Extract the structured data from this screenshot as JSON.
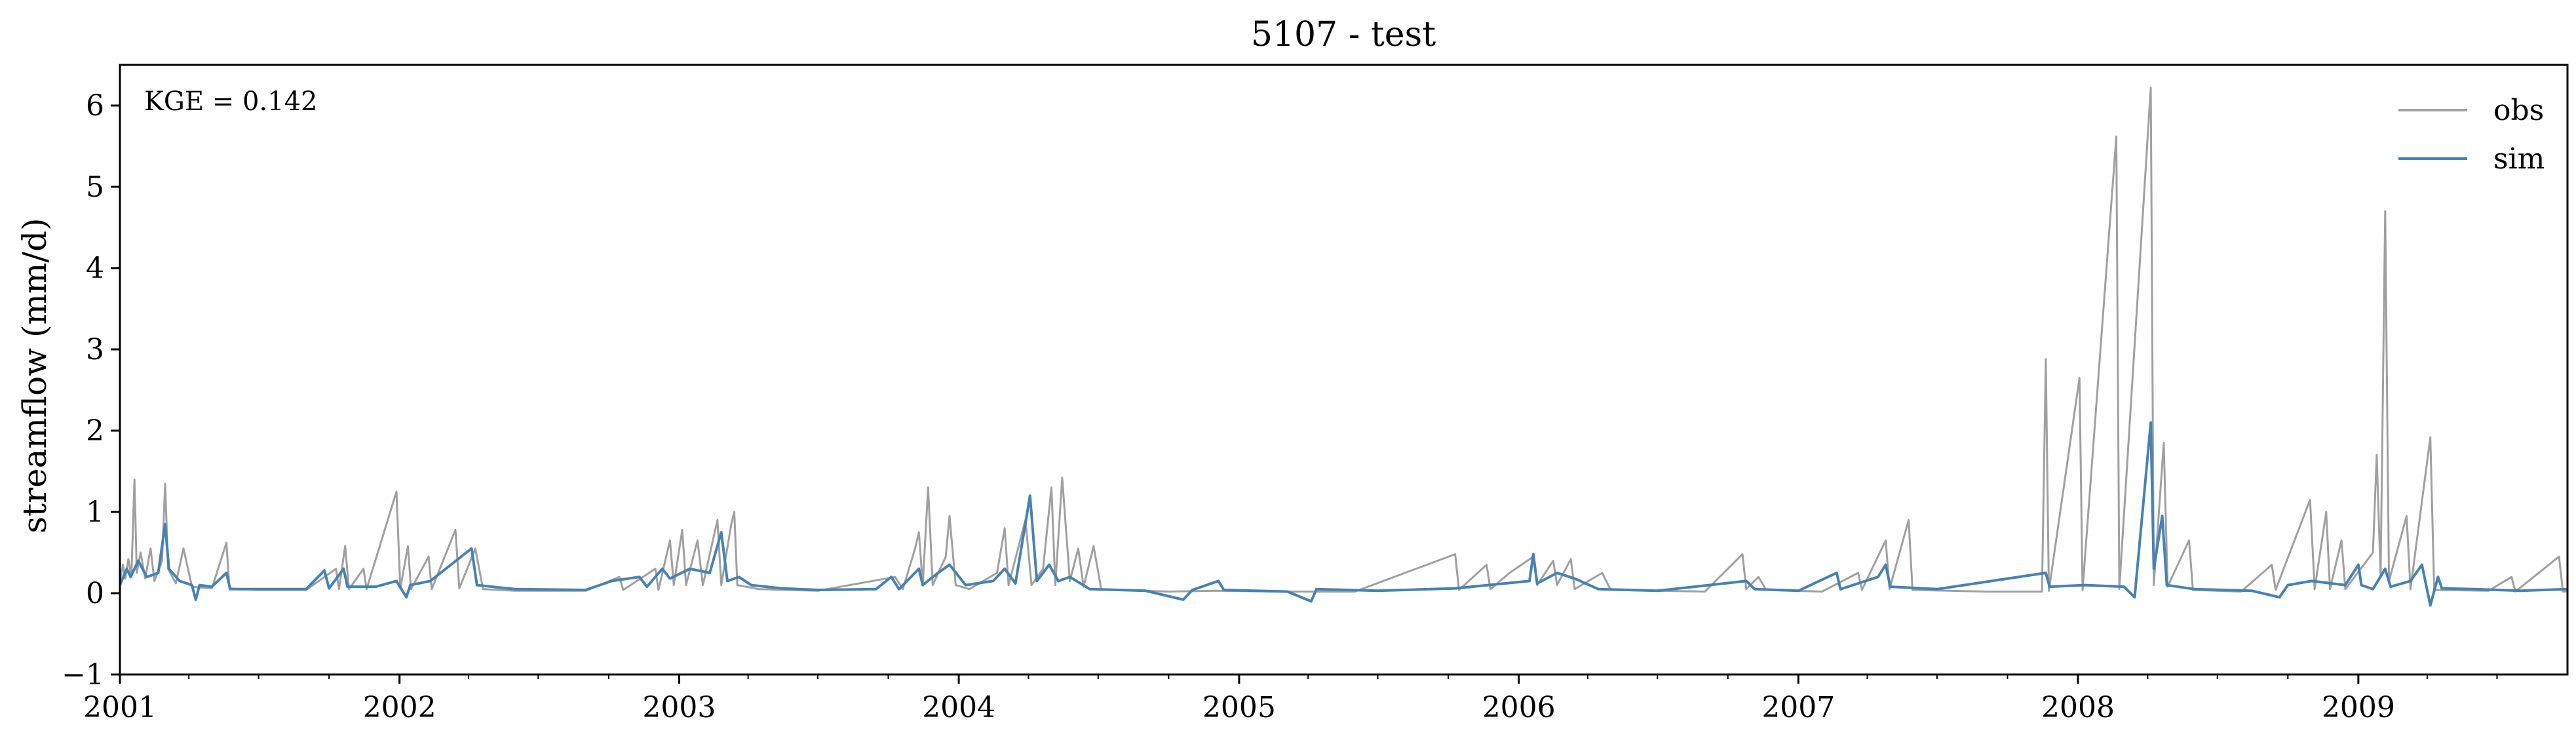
{
  "chart_data": {
    "type": "line",
    "title": "5107 - test",
    "xlabel": "",
    "ylabel": "streamflow (mm/d)",
    "annotation": "KGE = 0.142",
    "xlim": [
      "2001-01-01",
      "2009-10-01"
    ],
    "ylim": [
      -1,
      6.5
    ],
    "yticks": [
      -1,
      0,
      1,
      2,
      3,
      4,
      5,
      6
    ],
    "ytick_labels": [
      "−1",
      "0",
      "1",
      "2",
      "3",
      "4",
      "5",
      "6"
    ],
    "xticks": [
      "2001-01-01",
      "2002-01-01",
      "2003-01-01",
      "2004-01-01",
      "2005-01-01",
      "2006-01-01",
      "2007-01-01",
      "2008-01-01",
      "2009-01-01"
    ],
    "xtick_labels": [
      "2001",
      "2002",
      "2003",
      "2004",
      "2005",
      "2006",
      "2007",
      "2008",
      "2009"
    ],
    "grid": false,
    "legend_position": "top-right",
    "series": [
      {
        "name": "obs",
        "color": "#a0a0a0",
        "points": [
          [
            "2001-01-01",
            0.15
          ],
          [
            "2001-01-05",
            0.35
          ],
          [
            "2001-01-08",
            0.18
          ],
          [
            "2001-01-12",
            0.42
          ],
          [
            "2001-01-16",
            0.2
          ],
          [
            "2001-01-20",
            1.4
          ],
          [
            "2001-01-23",
            0.25
          ],
          [
            "2001-01-28",
            0.5
          ],
          [
            "2001-02-03",
            0.18
          ],
          [
            "2001-02-10",
            0.55
          ],
          [
            "2001-02-15",
            0.15
          ],
          [
            "2001-02-25",
            0.4
          ],
          [
            "2001-03-01",
            1.35
          ],
          [
            "2001-03-05",
            0.3
          ],
          [
            "2001-03-15",
            0.12
          ],
          [
            "2001-03-25",
            0.55
          ],
          [
            "2001-04-05",
            0.08
          ],
          [
            "2001-05-01",
            0.06
          ],
          [
            "2001-05-20",
            0.62
          ],
          [
            "2001-05-24",
            0.06
          ],
          [
            "2001-07-01",
            0.04
          ],
          [
            "2001-09-01",
            0.04
          ],
          [
            "2001-10-10",
            0.3
          ],
          [
            "2001-10-14",
            0.05
          ],
          [
            "2001-10-22",
            0.58
          ],
          [
            "2001-10-27",
            0.05
          ],
          [
            "2001-11-15",
            0.3
          ],
          [
            "2001-11-19",
            0.05
          ],
          [
            "2001-12-28",
            1.25
          ],
          [
            "2002-01-02",
            0.06
          ],
          [
            "2002-01-12",
            0.58
          ],
          [
            "2002-01-16",
            0.05
          ],
          [
            "2002-02-08",
            0.45
          ],
          [
            "2002-02-12",
            0.05
          ],
          [
            "2002-03-15",
            0.78
          ],
          [
            "2002-03-20",
            0.06
          ],
          [
            "2002-04-10",
            0.55
          ],
          [
            "2002-04-20",
            0.05
          ],
          [
            "2002-06-01",
            0.03
          ],
          [
            "2002-09-01",
            0.03
          ],
          [
            "2002-10-15",
            0.2
          ],
          [
            "2002-10-20",
            0.04
          ],
          [
            "2002-12-01",
            0.3
          ],
          [
            "2002-12-05",
            0.04
          ],
          [
            "2002-12-20",
            0.65
          ],
          [
            "2002-12-25",
            0.1
          ],
          [
            "2003-01-05",
            0.78
          ],
          [
            "2003-01-10",
            0.1
          ],
          [
            "2003-01-25",
            0.65
          ],
          [
            "2003-02-01",
            0.1
          ],
          [
            "2003-02-20",
            0.9
          ],
          [
            "2003-02-25",
            0.1
          ],
          [
            "2003-03-10",
            0.85
          ],
          [
            "2003-03-14",
            1.0
          ],
          [
            "2003-03-18",
            0.1
          ],
          [
            "2003-04-15",
            0.05
          ],
          [
            "2003-07-01",
            0.03
          ],
          [
            "2003-10-10",
            0.2
          ],
          [
            "2003-10-20",
            0.05
          ],
          [
            "2003-11-05",
            0.55
          ],
          [
            "2003-11-10",
            0.75
          ],
          [
            "2003-11-15",
            0.1
          ],
          [
            "2003-11-22",
            1.3
          ],
          [
            "2003-11-28",
            0.1
          ],
          [
            "2003-12-15",
            0.45
          ],
          [
            "2003-12-20",
            0.95
          ],
          [
            "2003-12-28",
            0.1
          ],
          [
            "2004-01-15",
            0.05
          ],
          [
            "2004-02-20",
            0.25
          ],
          [
            "2004-03-01",
            0.8
          ],
          [
            "2004-03-06",
            0.1
          ],
          [
            "2004-03-28",
            0.9
          ],
          [
            "2004-04-05",
            0.1
          ],
          [
            "2004-04-20",
            0.3
          ],
          [
            "2004-05-01",
            1.3
          ],
          [
            "2004-05-06",
            0.1
          ],
          [
            "2004-05-15",
            1.42
          ],
          [
            "2004-05-25",
            0.15
          ],
          [
            "2004-06-05",
            0.55
          ],
          [
            "2004-06-12",
            0.08
          ],
          [
            "2004-06-25",
            0.58
          ],
          [
            "2004-07-05",
            0.05
          ],
          [
            "2004-10-01",
            0.02
          ],
          [
            "2004-12-01",
            0.03
          ],
          [
            "2005-03-01",
            0.02
          ],
          [
            "2005-06-01",
            0.02
          ],
          [
            "2005-10-10",
            0.48
          ],
          [
            "2005-10-15",
            0.04
          ],
          [
            "2005-11-20",
            0.35
          ],
          [
            "2005-11-25",
            0.05
          ],
          [
            "2005-12-20",
            0.25
          ],
          [
            "2006-01-20",
            0.45
          ],
          [
            "2006-01-25",
            0.1
          ],
          [
            "2006-02-15",
            0.4
          ],
          [
            "2006-02-20",
            0.1
          ],
          [
            "2006-03-10",
            0.42
          ],
          [
            "2006-03-15",
            0.05
          ],
          [
            "2006-04-20",
            0.25
          ],
          [
            "2006-05-01",
            0.04
          ],
          [
            "2006-09-01",
            0.02
          ],
          [
            "2006-10-20",
            0.48
          ],
          [
            "2006-10-25",
            0.05
          ],
          [
            "2006-11-10",
            0.2
          ],
          [
            "2006-11-20",
            0.04
          ],
          [
            "2007-02-01",
            0.02
          ],
          [
            "2007-03-20",
            0.25
          ],
          [
            "2007-03-25",
            0.04
          ],
          [
            "2007-04-25",
            0.65
          ],
          [
            "2007-04-30",
            0.05
          ],
          [
            "2007-05-25",
            0.9
          ],
          [
            "2007-05-30",
            0.04
          ],
          [
            "2007-09-01",
            0.02
          ],
          [
            "2007-11-15",
            0.02
          ],
          [
            "2007-11-20",
            2.88
          ],
          [
            "2007-11-24",
            0.03
          ],
          [
            "2008-01-03",
            2.65
          ],
          [
            "2008-01-07",
            0.04
          ],
          [
            "2008-02-20",
            5.62
          ],
          [
            "2008-02-24",
            0.05
          ],
          [
            "2008-04-05",
            6.22
          ],
          [
            "2008-04-09",
            0.1
          ],
          [
            "2008-04-22",
            1.85
          ],
          [
            "2008-04-27",
            0.08
          ],
          [
            "2008-05-25",
            0.65
          ],
          [
            "2008-05-30",
            0.04
          ],
          [
            "2008-08-01",
            0.02
          ],
          [
            "2008-09-10",
            0.35
          ],
          [
            "2008-09-15",
            0.04
          ],
          [
            "2008-10-30",
            1.15
          ],
          [
            "2008-11-05",
            0.05
          ],
          [
            "2008-11-20",
            1.0
          ],
          [
            "2008-11-25",
            0.05
          ],
          [
            "2008-12-10",
            0.65
          ],
          [
            "2008-12-15",
            0.05
          ],
          [
            "2009-01-20",
            0.5
          ],
          [
            "2009-01-25",
            1.7
          ],
          [
            "2009-01-30",
            0.2
          ],
          [
            "2009-02-05",
            4.7
          ],
          [
            "2009-02-10",
            0.15
          ],
          [
            "2009-03-05",
            0.95
          ],
          [
            "2009-03-10",
            0.05
          ],
          [
            "2009-04-05",
            1.92
          ],
          [
            "2009-04-10",
            0.04
          ],
          [
            "2009-06-20",
            0.03
          ],
          [
            "2009-07-20",
            0.2
          ],
          [
            "2009-07-25",
            0.02
          ],
          [
            "2009-09-20",
            0.45
          ],
          [
            "2009-09-25",
            0.02
          ],
          [
            "2009-10-01",
            0.02
          ]
        ]
      },
      {
        "name": "sim",
        "color": "#4682b4",
        "points": [
          [
            "2001-01-01",
            0.1
          ],
          [
            "2001-01-10",
            0.3
          ],
          [
            "2001-01-15",
            0.2
          ],
          [
            "2001-01-25",
            0.4
          ],
          [
            "2001-02-05",
            0.2
          ],
          [
            "2001-02-20",
            0.25
          ],
          [
            "2001-03-01",
            0.85
          ],
          [
            "2001-03-06",
            0.3
          ],
          [
            "2001-03-20",
            0.15
          ],
          [
            "2001-04-05",
            0.1
          ],
          [
            "2001-04-10",
            -0.08
          ],
          [
            "2001-04-15",
            0.1
          ],
          [
            "2001-05-01",
            0.08
          ],
          [
            "2001-05-20",
            0.25
          ],
          [
            "2001-05-25",
            0.05
          ],
          [
            "2001-07-01",
            0.05
          ],
          [
            "2001-09-01",
            0.05
          ],
          [
            "2001-09-25",
            0.28
          ],
          [
            "2001-10-01",
            0.06
          ],
          [
            "2001-10-20",
            0.3
          ],
          [
            "2001-10-25",
            0.08
          ],
          [
            "2001-12-01",
            0.08
          ],
          [
            "2001-12-28",
            0.15
          ],
          [
            "2002-01-10",
            -0.05
          ],
          [
            "2002-01-15",
            0.1
          ],
          [
            "2002-02-10",
            0.15
          ],
          [
            "2002-04-05",
            0.55
          ],
          [
            "2002-04-12",
            0.1
          ],
          [
            "2002-06-01",
            0.05
          ],
          [
            "2002-09-01",
            0.04
          ],
          [
            "2002-10-05",
            0.15
          ],
          [
            "2002-11-10",
            0.2
          ],
          [
            "2002-11-20",
            0.08
          ],
          [
            "2002-12-10",
            0.3
          ],
          [
            "2002-12-20",
            0.18
          ],
          [
            "2003-01-15",
            0.3
          ],
          [
            "2003-02-10",
            0.25
          ],
          [
            "2003-02-25",
            0.75
          ],
          [
            "2003-03-05",
            0.15
          ],
          [
            "2003-03-20",
            0.2
          ],
          [
            "2003-04-05",
            0.1
          ],
          [
            "2003-05-15",
            0.06
          ],
          [
            "2003-07-01",
            0.04
          ],
          [
            "2003-09-15",
            0.05
          ],
          [
            "2003-10-05",
            0.2
          ],
          [
            "2003-10-15",
            0.05
          ],
          [
            "2003-11-10",
            0.3
          ],
          [
            "2003-11-15",
            0.1
          ],
          [
            "2003-12-05",
            0.25
          ],
          [
            "2003-12-20",
            0.35
          ],
          [
            "2004-01-10",
            0.1
          ],
          [
            "2004-02-15",
            0.15
          ],
          [
            "2004-03-01",
            0.3
          ],
          [
            "2004-03-15",
            0.12
          ],
          [
            "2004-04-03",
            1.2
          ],
          [
            "2004-04-12",
            0.15
          ],
          [
            "2004-04-28",
            0.35
          ],
          [
            "2004-05-10",
            0.15
          ],
          [
            "2004-05-25",
            0.2
          ],
          [
            "2004-06-20",
            0.05
          ],
          [
            "2004-09-01",
            0.03
          ],
          [
            "2004-10-20",
            -0.08
          ],
          [
            "2004-11-01",
            0.04
          ],
          [
            "2004-12-05",
            0.15
          ],
          [
            "2004-12-12",
            0.04
          ],
          [
            "2005-03-05",
            0.02
          ],
          [
            "2005-04-05",
            -0.1
          ],
          [
            "2005-04-12",
            0.05
          ],
          [
            "2005-07-01",
            0.03
          ],
          [
            "2005-10-10",
            0.06
          ],
          [
            "2006-01-15",
            0.15
          ],
          [
            "2006-01-20",
            0.48
          ],
          [
            "2006-01-25",
            0.12
          ],
          [
            "2006-02-20",
            0.25
          ],
          [
            "2006-03-15",
            0.18
          ],
          [
            "2006-04-15",
            0.05
          ],
          [
            "2006-07-01",
            0.03
          ],
          [
            "2006-10-25",
            0.15
          ],
          [
            "2006-11-05",
            0.05
          ],
          [
            "2007-01-01",
            0.03
          ],
          [
            "2007-02-20",
            0.25
          ],
          [
            "2007-02-25",
            0.05
          ],
          [
            "2007-04-15",
            0.2
          ],
          [
            "2007-04-25",
            0.35
          ],
          [
            "2007-05-01",
            0.08
          ],
          [
            "2007-07-01",
            0.05
          ],
          [
            "2007-11-20",
            0.25
          ],
          [
            "2007-11-25",
            0.08
          ],
          [
            "2008-01-10",
            0.1
          ],
          [
            "2008-03-01",
            0.08
          ],
          [
            "2008-03-15",
            -0.05
          ],
          [
            "2008-04-05",
            2.1
          ],
          [
            "2008-04-09",
            0.3
          ],
          [
            "2008-04-20",
            0.95
          ],
          [
            "2008-04-26",
            0.1
          ],
          [
            "2008-06-01",
            0.05
          ],
          [
            "2008-08-15",
            0.03
          ],
          [
            "2008-09-20",
            -0.05
          ],
          [
            "2008-10-01",
            0.1
          ],
          [
            "2008-11-01",
            0.15
          ],
          [
            "2008-12-15",
            0.1
          ],
          [
            "2009-01-01",
            0.35
          ],
          [
            "2009-01-05",
            0.1
          ],
          [
            "2009-01-20",
            0.05
          ],
          [
            "2009-02-05",
            0.3
          ],
          [
            "2009-02-12",
            0.08
          ],
          [
            "2009-03-10",
            0.15
          ],
          [
            "2009-03-25",
            0.35
          ],
          [
            "2009-04-05",
            -0.15
          ],
          [
            "2009-04-15",
            0.2
          ],
          [
            "2009-04-20",
            0.06
          ],
          [
            "2009-06-01",
            0.05
          ],
          [
            "2009-08-01",
            0.03
          ],
          [
            "2009-10-01",
            0.05
          ]
        ]
      }
    ]
  }
}
